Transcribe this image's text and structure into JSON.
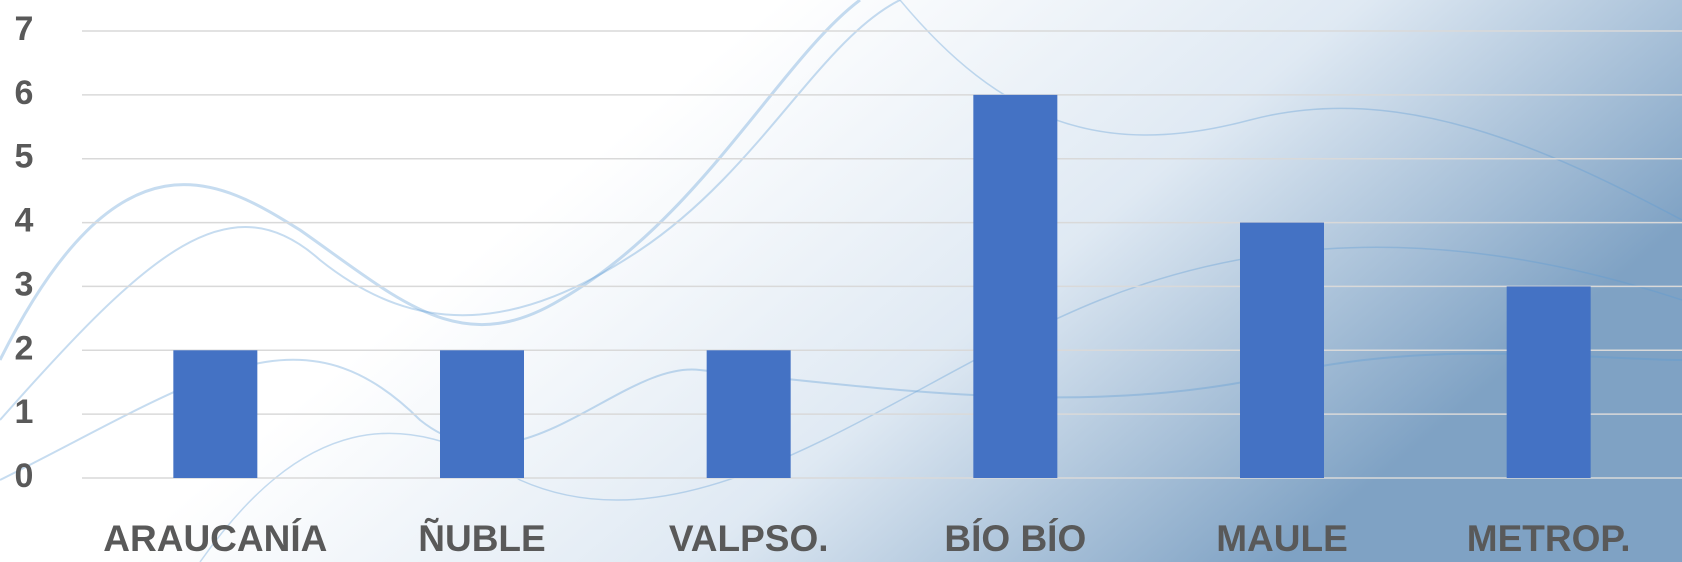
{
  "chart_data": {
    "type": "bar",
    "categories": [
      "ARAUCANÍA",
      "ÑUBLE",
      "VALPSO.",
      "BÍO BÍO",
      "MAULE",
      "METROP."
    ],
    "values": [
      2,
      2,
      2,
      6,
      4,
      3
    ],
    "color": "#4472c4",
    "ylim": [
      0,
      7
    ],
    "yticks": [
      0,
      1,
      2,
      3,
      4,
      5,
      6,
      7
    ],
    "grid": true
  }
}
